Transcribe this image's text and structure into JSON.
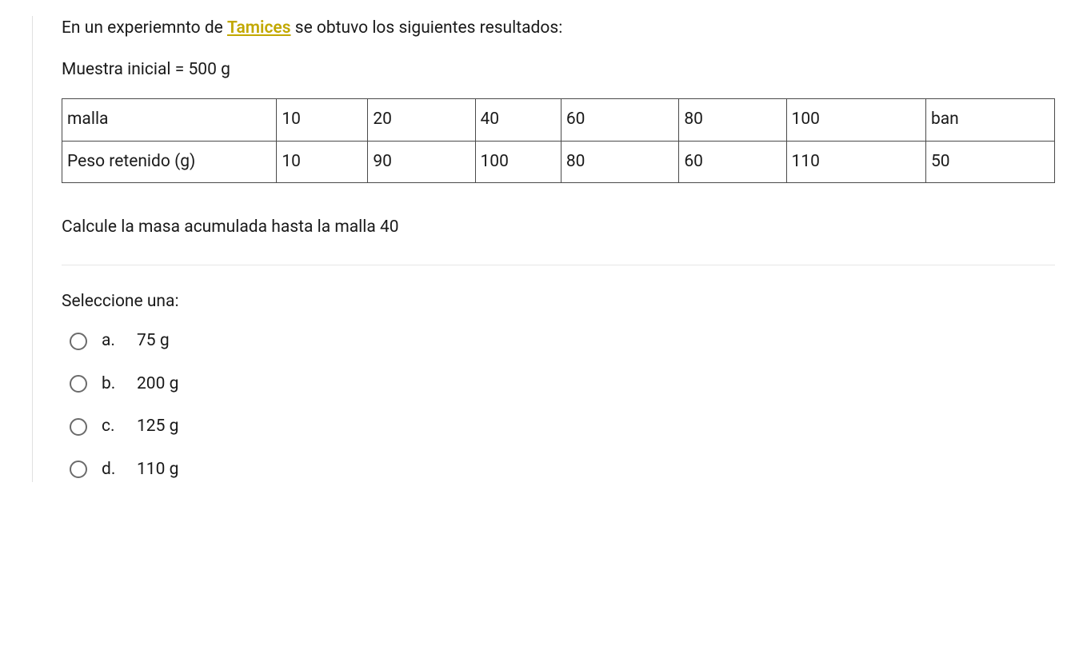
{
  "question": {
    "intro_prefix": "En un experiemnto de ",
    "intro_link": "Tamices",
    "intro_suffix": " se obtuvo los siguientes resultados:",
    "sample_text": "Muestra inicial = 500 g",
    "prompt": "Calcule la masa acumulada hasta la  malla 40"
  },
  "table": {
    "columns": [
      "malla",
      "10",
      "20",
      "40",
      "60",
      "80",
      "100",
      "ban"
    ],
    "rows": [
      [
        "Peso retenido (g)",
        "10",
        "90",
        "100",
        "80",
        "60",
        "110",
        "50"
      ]
    ],
    "border_color": "#4a4a4a",
    "text_color": "#1a1a1a",
    "column_widths_pct": [
      20,
      8.5,
      10,
      8,
      11,
      10,
      13,
      12
    ]
  },
  "select_label": "Seleccione una:",
  "options": [
    {
      "letter": "a.",
      "text": "75 g"
    },
    {
      "letter": "b.",
      "text": "200 g"
    },
    {
      "letter": "c.",
      "text": "125 g"
    },
    {
      "letter": "d.",
      "text": "110 g"
    }
  ],
  "colors": {
    "link": "#c2a800",
    "text": "#1a1a1a",
    "border_light": "#e0e0e0",
    "divider": "#e6e6e6",
    "radio_border": "#6b6b6b",
    "background": "#ffffff"
  }
}
